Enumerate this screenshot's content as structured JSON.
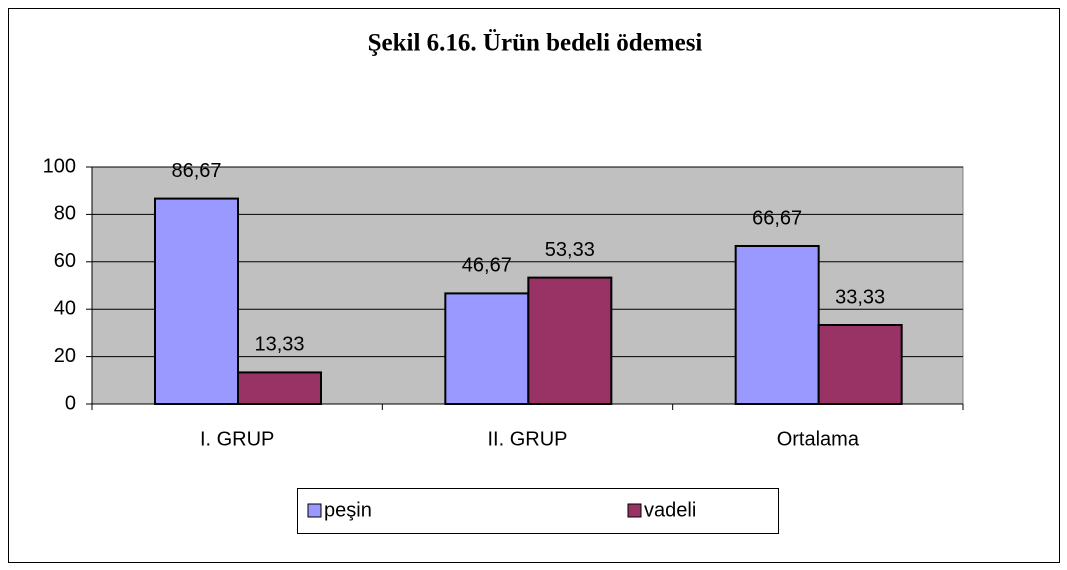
{
  "chart_data": {
    "type": "bar",
    "title": "Şekil 6.16. Ürün bedeli ödemesi",
    "categories": [
      "I. GRUP",
      "II. GRUP",
      "Ortalama"
    ],
    "series": [
      {
        "name": "peşin",
        "color": "#9999ff",
        "values": [
          86.67,
          46.67,
          66.67
        ],
        "value_labels": [
          "86,67",
          "46,67",
          "66,67"
        ]
      },
      {
        "name": "vadeli",
        "color": "#993366",
        "values": [
          13.33,
          53.33,
          33.33
        ],
        "value_labels": [
          "13,33",
          "53,33",
          "33,33"
        ]
      }
    ],
    "ylim": [
      0,
      100
    ],
    "yticks": [
      0,
      20,
      40,
      60,
      80,
      100
    ],
    "grid": true,
    "legend": "bottom"
  }
}
